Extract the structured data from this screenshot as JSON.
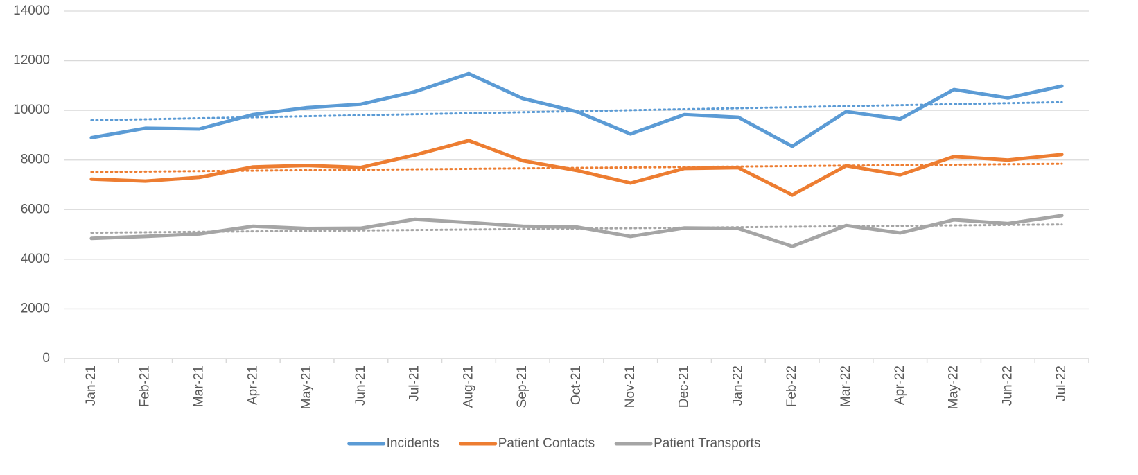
{
  "chart_data": {
    "type": "line",
    "categories": [
      "Jan-21",
      "Feb-21",
      "Mar-21",
      "Apr-21",
      "May-21",
      "Jun-21",
      "Jul-21",
      "Aug-21",
      "Sep-21",
      "Oct-21",
      "Nov-21",
      "Dec-21",
      "Jan-22",
      "Feb-22",
      "Mar-22",
      "Apr-22",
      "May-22",
      "Jun-22",
      "Jul-22"
    ],
    "series": [
      {
        "name": "Incidents",
        "color": "#5b9bd5",
        "values": [
          8900,
          9280,
          9250,
          9830,
          10110,
          10250,
          10750,
          11480,
          10480,
          9950,
          9050,
          9830,
          9720,
          8550,
          9950,
          9650,
          10840,
          10500,
          10980
        ]
      },
      {
        "name": "Patient Contacts",
        "color": "#ed7d31",
        "values": [
          7230,
          7150,
          7300,
          7720,
          7780,
          7700,
          8200,
          8780,
          7970,
          7580,
          7070,
          7660,
          7690,
          6590,
          7770,
          7400,
          8140,
          8000,
          8220
        ]
      },
      {
        "name": "Patient Transports",
        "color": "#a5a5a5",
        "values": [
          4840,
          4920,
          5020,
          5330,
          5240,
          5250,
          5610,
          5480,
          5330,
          5300,
          4920,
          5260,
          5240,
          4520,
          5360,
          5060,
          5590,
          5440,
          5760
        ]
      }
    ],
    "trendline": "linear",
    "ylim": [
      0,
      14000
    ],
    "yticks": [
      0,
      2000,
      4000,
      6000,
      8000,
      10000,
      12000,
      14000
    ],
    "grid": true,
    "legend": "bottom"
  }
}
